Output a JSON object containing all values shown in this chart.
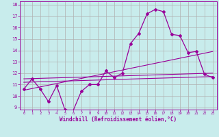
{
  "xlabel": "Windchill (Refroidissement éolien,°C)",
  "background_color": "#c8ecec",
  "line_color": "#990099",
  "grid_color": "#b0b0b0",
  "xlim": [
    -0.5,
    23.5
  ],
  "ylim": [
    8.8,
    18.3
  ],
  "yticks": [
    9,
    10,
    11,
    12,
    13,
    14,
    15,
    16,
    17,
    18
  ],
  "xticks": [
    0,
    1,
    2,
    3,
    4,
    5,
    6,
    7,
    8,
    9,
    10,
    11,
    12,
    13,
    14,
    15,
    16,
    17,
    18,
    19,
    20,
    21,
    22,
    23
  ],
  "main_x": [
    0,
    1,
    2,
    3,
    4,
    5,
    6,
    7,
    8,
    9,
    10,
    11,
    12,
    13,
    14,
    15,
    16,
    17,
    18,
    19,
    20,
    21,
    22,
    23
  ],
  "main_y": [
    10.6,
    11.5,
    10.6,
    9.5,
    10.9,
    8.8,
    8.7,
    10.4,
    11.0,
    11.0,
    12.2,
    11.6,
    12.0,
    14.6,
    15.5,
    17.2,
    17.6,
    17.4,
    15.4,
    15.3,
    13.8,
    13.9,
    11.9,
    11.6
  ],
  "line1_x": [
    0,
    23
  ],
  "line1_y": [
    11.5,
    12.0
  ],
  "line2_x": [
    0,
    23
  ],
  "line2_y": [
    11.2,
    11.7
  ],
  "line3_x": [
    0,
    23
  ],
  "line3_y": [
    10.5,
    13.9
  ]
}
